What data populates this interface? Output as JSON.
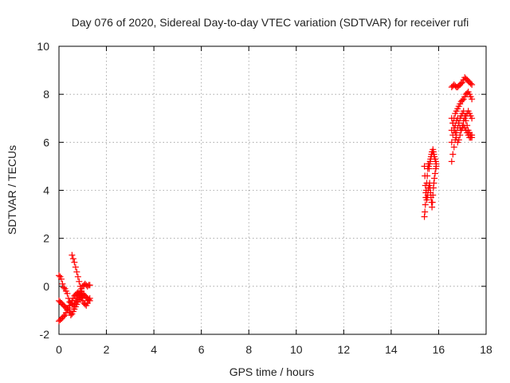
{
  "chart_data": {
    "type": "scatter",
    "title": "Day 076 of 2020, Sidereal Day-to-day VTEC variation (SDTVAR) for receiver rufi",
    "xlabel": "GPS time / hours",
    "ylabel": "SDTVAR / TECUs",
    "xlim": [
      0,
      18
    ],
    "ylim": [
      -2,
      10
    ],
    "xticks": [
      0,
      2,
      4,
      6,
      8,
      10,
      12,
      14,
      16,
      18
    ],
    "yticks": [
      -2,
      0,
      2,
      4,
      6,
      8,
      10
    ],
    "xtick_labels": [
      "0",
      "2",
      "4",
      "6",
      "8",
      "10",
      "12",
      "14",
      "16",
      "18"
    ],
    "ytick_labels": [
      "-2",
      "0",
      "2",
      "4",
      "6",
      "8",
      "10"
    ],
    "grid": true,
    "marker": "plus",
    "series": [
      {
        "name": "SDTVAR",
        "color": "#ff0000",
        "x": [
          0.0,
          0.05,
          0.1,
          0.15,
          0.2,
          0.25,
          0.3,
          0.35,
          0.4,
          0.45,
          0.5,
          0.55,
          0.6,
          0.65,
          0.7,
          0.75,
          0.8,
          0.85,
          0.9,
          0.95,
          1.0,
          1.05,
          1.1,
          1.15,
          1.2,
          1.25,
          1.3,
          0.0,
          0.05,
          0.1,
          0.15,
          0.2,
          0.25,
          0.3,
          0.35,
          0.4,
          0.45,
          0.5,
          0.55,
          0.6,
          0.65,
          0.7,
          0.75,
          0.8,
          0.85,
          0.9,
          0.95,
          1.0,
          1.05,
          1.1,
          1.15,
          1.2,
          1.25,
          1.3,
          0.0,
          0.05,
          0.1,
          0.15,
          0.2,
          0.25,
          0.3,
          0.35,
          0.4,
          0.45,
          0.5,
          0.55,
          0.6,
          0.65,
          0.7,
          0.75,
          0.8,
          0.85,
          0.9,
          0.95,
          1.0,
          1.05,
          1.1,
          1.15,
          1.2,
          1.25,
          1.3,
          0.55,
          0.6,
          0.65,
          0.7,
          0.75,
          0.8,
          0.85,
          0.9,
          0.95,
          1.0,
          15.4,
          15.42,
          15.44,
          15.46,
          15.48,
          15.5,
          15.52,
          15.54,
          15.56,
          15.58,
          15.6,
          15.62,
          15.64,
          15.66,
          15.68,
          15.7,
          15.72,
          15.74,
          15.76,
          15.78,
          15.8,
          15.82,
          15.85,
          15.88,
          15.9,
          15.4,
          15.42,
          15.44,
          15.46,
          15.48,
          15.5,
          15.52,
          15.54,
          15.56,
          15.58,
          15.6,
          15.62,
          15.64,
          15.66,
          15.68,
          15.7,
          15.72,
          15.74,
          15.76,
          15.78,
          15.8,
          15.82,
          15.85,
          15.88,
          15.9,
          16.55,
          16.6,
          16.65,
          16.7,
          16.75,
          16.8,
          16.85,
          16.9,
          16.95,
          17.0,
          17.05,
          17.1,
          17.15,
          17.2,
          17.25,
          17.3,
          17.35,
          17.4,
          16.55,
          16.6,
          16.65,
          16.7,
          16.75,
          16.8,
          16.85,
          16.9,
          16.95,
          17.0,
          17.05,
          17.1,
          17.15,
          17.2,
          17.25,
          17.3,
          17.35,
          17.4,
          16.55,
          16.6,
          16.65,
          16.7,
          16.75,
          16.8,
          16.85,
          16.9,
          16.95,
          17.0,
          17.05,
          17.1,
          17.15,
          17.2,
          17.25,
          17.3,
          17.35,
          17.4,
          16.55,
          16.6,
          16.65,
          16.7,
          16.75,
          16.8,
          16.85,
          16.9,
          16.95,
          17.0,
          17.05,
          17.1,
          17.15,
          17.2,
          17.25,
          17.3,
          17.35,
          17.4,
          16.55,
          16.6,
          16.65,
          16.7,
          16.75,
          16.8,
          16.85,
          16.9,
          16.95,
          17.0,
          17.05,
          17.1,
          17.15,
          17.2,
          17.25,
          17.3,
          17.35,
          17.4
        ],
        "y": [
          0.45,
          0.4,
          0.3,
          0.1,
          -0.05,
          -0.1,
          -0.2,
          -0.3,
          -0.5,
          -0.65,
          -0.7,
          -0.75,
          -0.8,
          -0.7,
          -0.6,
          -0.5,
          -0.4,
          -0.3,
          -0.2,
          -0.1,
          0.0,
          0.05,
          0.1,
          0.05,
          0.0,
          0.05,
          0.05,
          -0.6,
          -0.65,
          -0.7,
          -0.75,
          -0.8,
          -0.85,
          -0.9,
          -0.95,
          -1.0,
          -1.1,
          -1.2,
          -1.15,
          -1.05,
          -0.95,
          -0.85,
          -0.75,
          -0.65,
          -0.55,
          -0.45,
          -0.35,
          -0.3,
          -0.35,
          -0.4,
          -0.45,
          -0.5,
          -0.55,
          -0.6,
          -1.45,
          -1.4,
          -1.35,
          -1.3,
          -1.25,
          -1.2,
          -1.1,
          -1.0,
          -0.9,
          -0.8,
          -0.7,
          -0.6,
          -0.5,
          -0.4,
          -0.35,
          -0.3,
          -0.25,
          -0.3,
          -0.4,
          -0.5,
          -0.6,
          -0.7,
          -0.75,
          -0.8,
          -0.7,
          -0.6,
          -0.5,
          1.3,
          1.15,
          1.0,
          0.8,
          0.6,
          0.4,
          0.2,
          0.0,
          -0.2,
          -0.4,
          2.9,
          3.1,
          3.4,
          3.7,
          4.0,
          4.3,
          4.6,
          4.9,
          5.1,
          5.0,
          4.9,
          5.1,
          5.2,
          5.3,
          5.4,
          5.5,
          5.6,
          5.6,
          5.7,
          5.6,
          5.5,
          5.4,
          5.3,
          5.2,
          5.1,
          5.0,
          4.6,
          4.2,
          3.9,
          3.7,
          3.6,
          3.7,
          3.8,
          4.0,
          4.1,
          4.2,
          4.3,
          4.1,
          3.9,
          3.7,
          3.5,
          3.3,
          3.5,
          3.8,
          4.1,
          4.3,
          4.5,
          4.7,
          4.9,
          5.0,
          8.3,
          8.35,
          8.4,
          8.35,
          8.3,
          8.3,
          8.35,
          8.4,
          8.45,
          8.5,
          8.6,
          8.7,
          8.65,
          8.6,
          8.55,
          8.5,
          8.45,
          8.4,
          6.5,
          6.8,
          7.0,
          7.2,
          7.3,
          7.4,
          7.5,
          7.6,
          7.7,
          7.75,
          7.8,
          7.9,
          8.0,
          8.05,
          8.1,
          8.0,
          7.9,
          7.8,
          5.2,
          5.5,
          5.8,
          6.1,
          6.4,
          6.6,
          6.8,
          7.0,
          7.1,
          7.2,
          7.3,
          7.1,
          6.9,
          6.7,
          6.5,
          6.4,
          6.3,
          6.2,
          6.0,
          6.3,
          6.5,
          6.7,
          6.9,
          7.0,
          6.8,
          6.6,
          6.5,
          6.7,
          6.9,
          7.0,
          7.1,
          7.2,
          7.3,
          7.2,
          7.1,
          7.0,
          7.0,
          6.8,
          6.6,
          6.4,
          6.2,
          6.0,
          6.1,
          6.3,
          6.5,
          6.6,
          6.7,
          6.6,
          6.5,
          6.4,
          6.3,
          6.2,
          6.2,
          6.3
        ]
      }
    ]
  }
}
